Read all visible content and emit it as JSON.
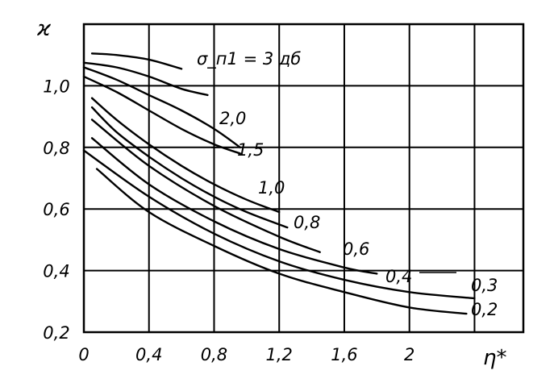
{
  "chart_data": {
    "type": "line",
    "title": "",
    "xlabel": "η*",
    "ylabel": "ϰ",
    "xlim": [
      0,
      2.7
    ],
    "ylim": [
      0.2,
      1.2
    ],
    "x_ticks": [
      0,
      0.4,
      0.8,
      1.2,
      1.6,
      2.0,
      2.4
    ],
    "x_tick_labels": [
      "0",
      "0,4",
      "0,8",
      "1,2",
      "1,6",
      "2",
      ""
    ],
    "y_ticks": [
      0.2,
      0.4,
      0.6,
      0.8,
      1.0,
      1.2
    ],
    "y_tick_labels": [
      "0,2",
      "0,4",
      "0,6",
      "0,8",
      "1,0",
      ""
    ],
    "grid": true,
    "legend": "none",
    "label_prefix": "σ_п1 = ",
    "series": [
      {
        "name": "3 дб",
        "x": [
          0.05,
          0.2,
          0.4,
          0.6
        ],
        "y": [
          1.105,
          1.1,
          1.085,
          1.055
        ]
      },
      {
        "name": "2,0",
        "x": [
          0.0,
          0.2,
          0.4,
          0.6,
          0.76
        ],
        "y": [
          1.075,
          1.06,
          1.03,
          0.99,
          0.97
        ]
      },
      {
        "name": "1,5",
        "x": [
          0.0,
          0.2,
          0.4,
          0.6,
          0.8,
          0.96
        ],
        "y": [
          1.06,
          1.02,
          0.97,
          0.92,
          0.86,
          0.8
        ]
      },
      {
        "name": "1,0",
        "x": [
          0.0,
          0.2,
          0.4,
          0.6,
          0.8,
          0.96
        ],
        "y": [
          1.03,
          0.98,
          0.92,
          0.86,
          0.81,
          0.78
        ]
      },
      {
        "name": "0,8",
        "x": [
          0.05,
          0.2,
          0.4,
          0.6,
          0.8,
          1.0,
          1.2
        ],
        "y": [
          0.96,
          0.89,
          0.81,
          0.74,
          0.68,
          0.63,
          0.59
        ]
      },
      {
        "name": "0,6",
        "x": [
          0.05,
          0.2,
          0.4,
          0.6,
          0.8,
          1.0,
          1.25
        ],
        "y": [
          0.93,
          0.85,
          0.77,
          0.7,
          0.64,
          0.59,
          0.54
        ]
      },
      {
        "name": "0,4",
        "x": [
          0.05,
          0.4,
          0.8,
          1.2,
          1.45
        ],
        "y": [
          0.89,
          0.74,
          0.61,
          0.51,
          0.46
        ]
      },
      {
        "name": "",
        "x": [
          0.05,
          0.4,
          0.8,
          1.2,
          1.6,
          1.8
        ],
        "y": [
          0.83,
          0.68,
          0.56,
          0.47,
          0.41,
          0.39
        ]
      },
      {
        "name": "0,3",
        "x": [
          0.0,
          0.4,
          0.8,
          1.2,
          1.6,
          2.0,
          2.4
        ],
        "y": [
          0.79,
          0.64,
          0.52,
          0.43,
          0.37,
          0.33,
          0.31
        ]
      },
      {
        "name": "0,2",
        "x": [
          0.08,
          0.4,
          0.8,
          1.2,
          1.6,
          2.0,
          2.35
        ],
        "y": [
          0.73,
          0.59,
          0.48,
          0.39,
          0.33,
          0.28,
          0.26
        ]
      }
    ]
  }
}
